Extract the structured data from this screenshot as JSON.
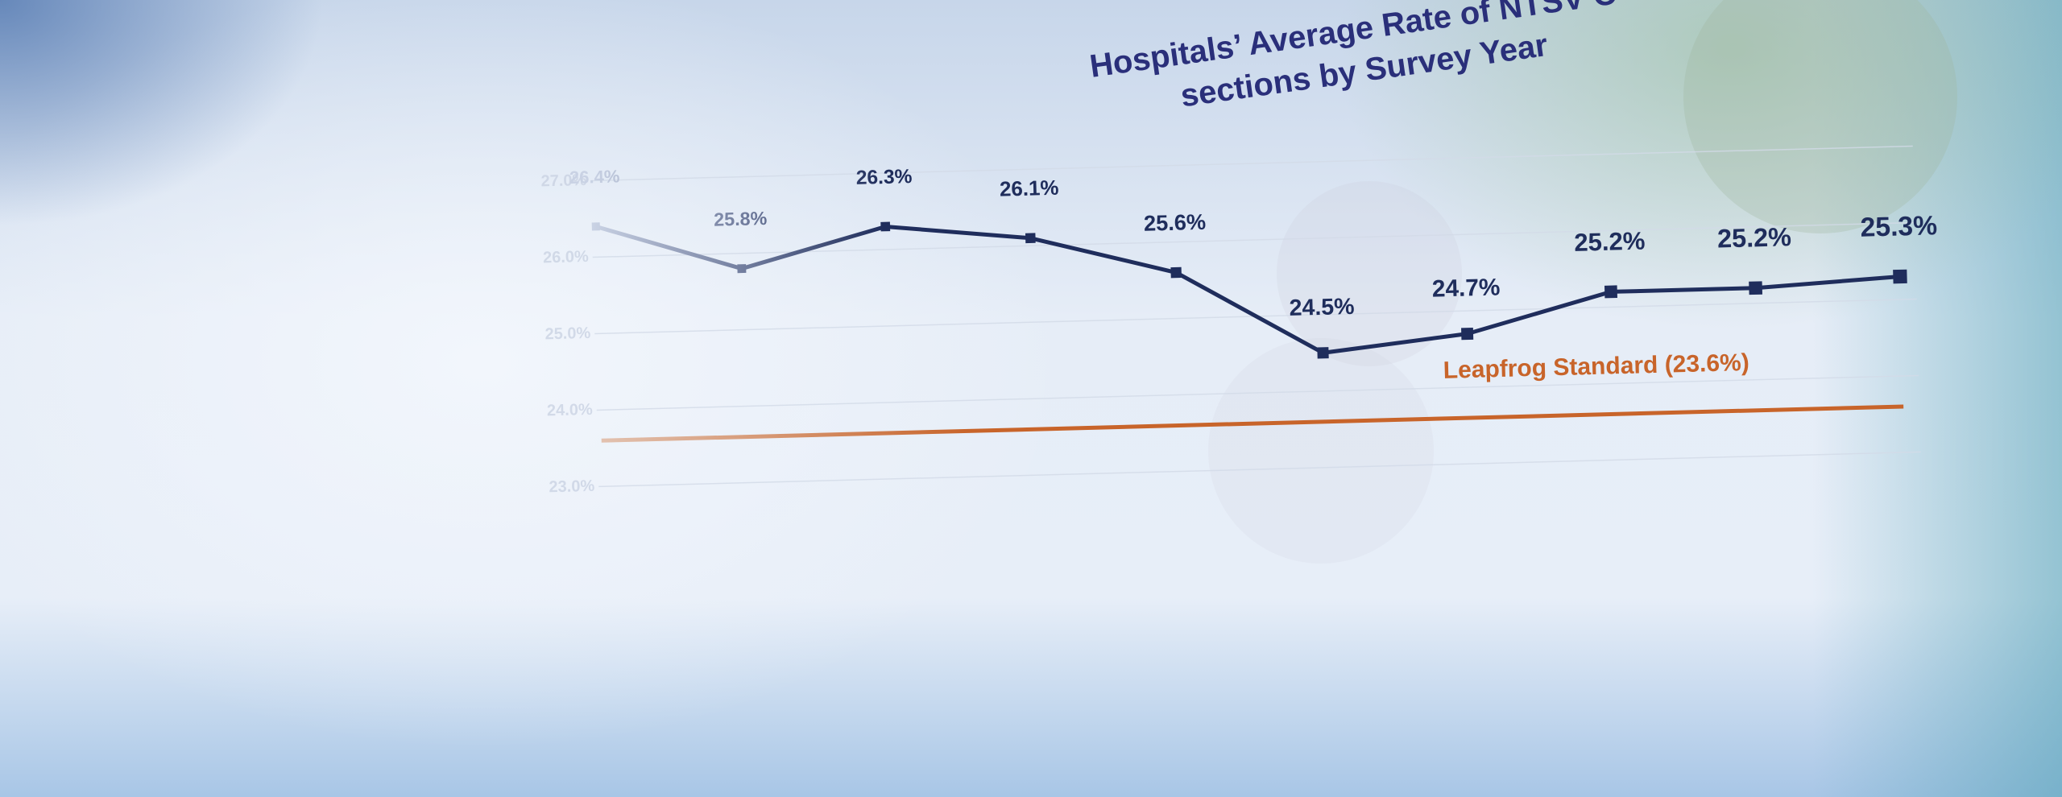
{
  "chart_data": {
    "type": "line",
    "title": "Hospitals’ Average Rate of NTSV C-sections by Survey Year",
    "values": [
      26.4,
      25.8,
      26.3,
      26.1,
      25.6,
      24.5,
      24.7,
      25.2,
      25.2,
      25.3
    ],
    "value_labels": [
      "26.4%",
      "25.8%",
      "26.3%",
      "26.1%",
      "25.6%",
      "24.5%",
      "24.7%",
      "25.2%",
      "25.2%",
      "25.3%"
    ],
    "color": "#1f2d5c",
    "ylim": [
      23,
      27
    ],
    "yticks": [
      {
        "value": 27,
        "label": "27.0%"
      },
      {
        "value": 26,
        "label": "26.0%"
      },
      {
        "value": 25,
        "label": "25.0%"
      },
      {
        "value": 24,
        "label": "24.0%"
      },
      {
        "value": 23,
        "label": "23.0%"
      }
    ],
    "grid": true,
    "reference_line": {
      "label": "Leapfrog Standard (23.6%)",
      "value": 23.6,
      "color": "#c8642a"
    }
  }
}
